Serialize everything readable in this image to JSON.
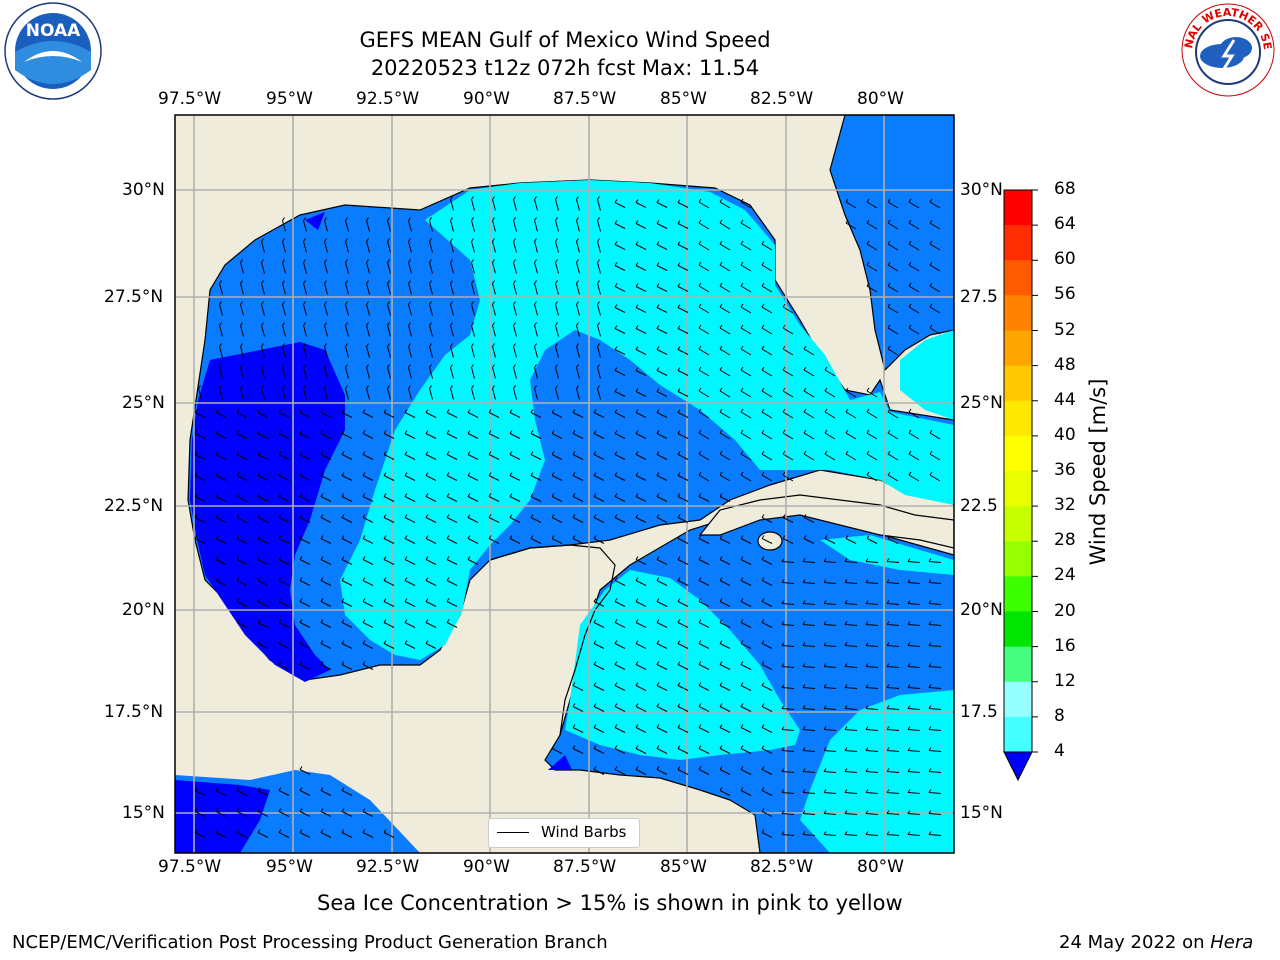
{
  "header": {
    "title_line1": "GEFS MEAN Gulf of Mexico Wind Speed",
    "title_line2": "20220523 t12z 072h fcst   Max: 11.54"
  },
  "map": {
    "lon_ticks": [
      "97.5°W",
      "95°W",
      "92.5°W",
      "90°W",
      "87.5°W",
      "85°W",
      "82.5°W",
      "80°W"
    ],
    "lat_ticks_left": [
      "30°N",
      "27.5°N",
      "25°N",
      "22.5°N",
      "20°N",
      "17.5°N",
      "15°N"
    ],
    "lat_ticks_right": [
      "30°N",
      "27.5",
      "25°N",
      "22.5",
      "20°N",
      "17.5",
      "15°N"
    ],
    "legend_label": "Wind Barbs",
    "colors": {
      "land": "#efecdc",
      "band_4_8": "#0a7cff",
      "band_0_4": "#0000ff",
      "band_8_12": "#00f7ff",
      "grid": "#b0b0b0"
    }
  },
  "colorbar": {
    "label": "Wind Speed [m/s]",
    "ticks": [
      "68",
      "64",
      "60",
      "56",
      "52",
      "48",
      "44",
      "40",
      "36",
      "32",
      "28",
      "24",
      "20",
      "16",
      "12",
      "8",
      "4"
    ],
    "colors": [
      "#ff0000",
      "#ff2e00",
      "#ff5a00",
      "#ff8200",
      "#ffa500",
      "#ffc800",
      "#ffe800",
      "#ffff00",
      "#e8ff00",
      "#c8ff00",
      "#96ff00",
      "#3cff00",
      "#00e600",
      "#46ff82",
      "#96ffff",
      "#46ffff",
      "#00fbff",
      "#0a7cff"
    ]
  },
  "footer": {
    "sea_ice_note": "Sea Ice Concentration > 15% is shown in pink to yellow",
    "credit": "NCEP/EMC/Verification Post Processing Product Generation Branch",
    "date": "24 May 2022 on",
    "machine": "Hera"
  },
  "logos": {
    "left": "NOAA",
    "right": "NATIONAL WEATHER SERVICE"
  }
}
